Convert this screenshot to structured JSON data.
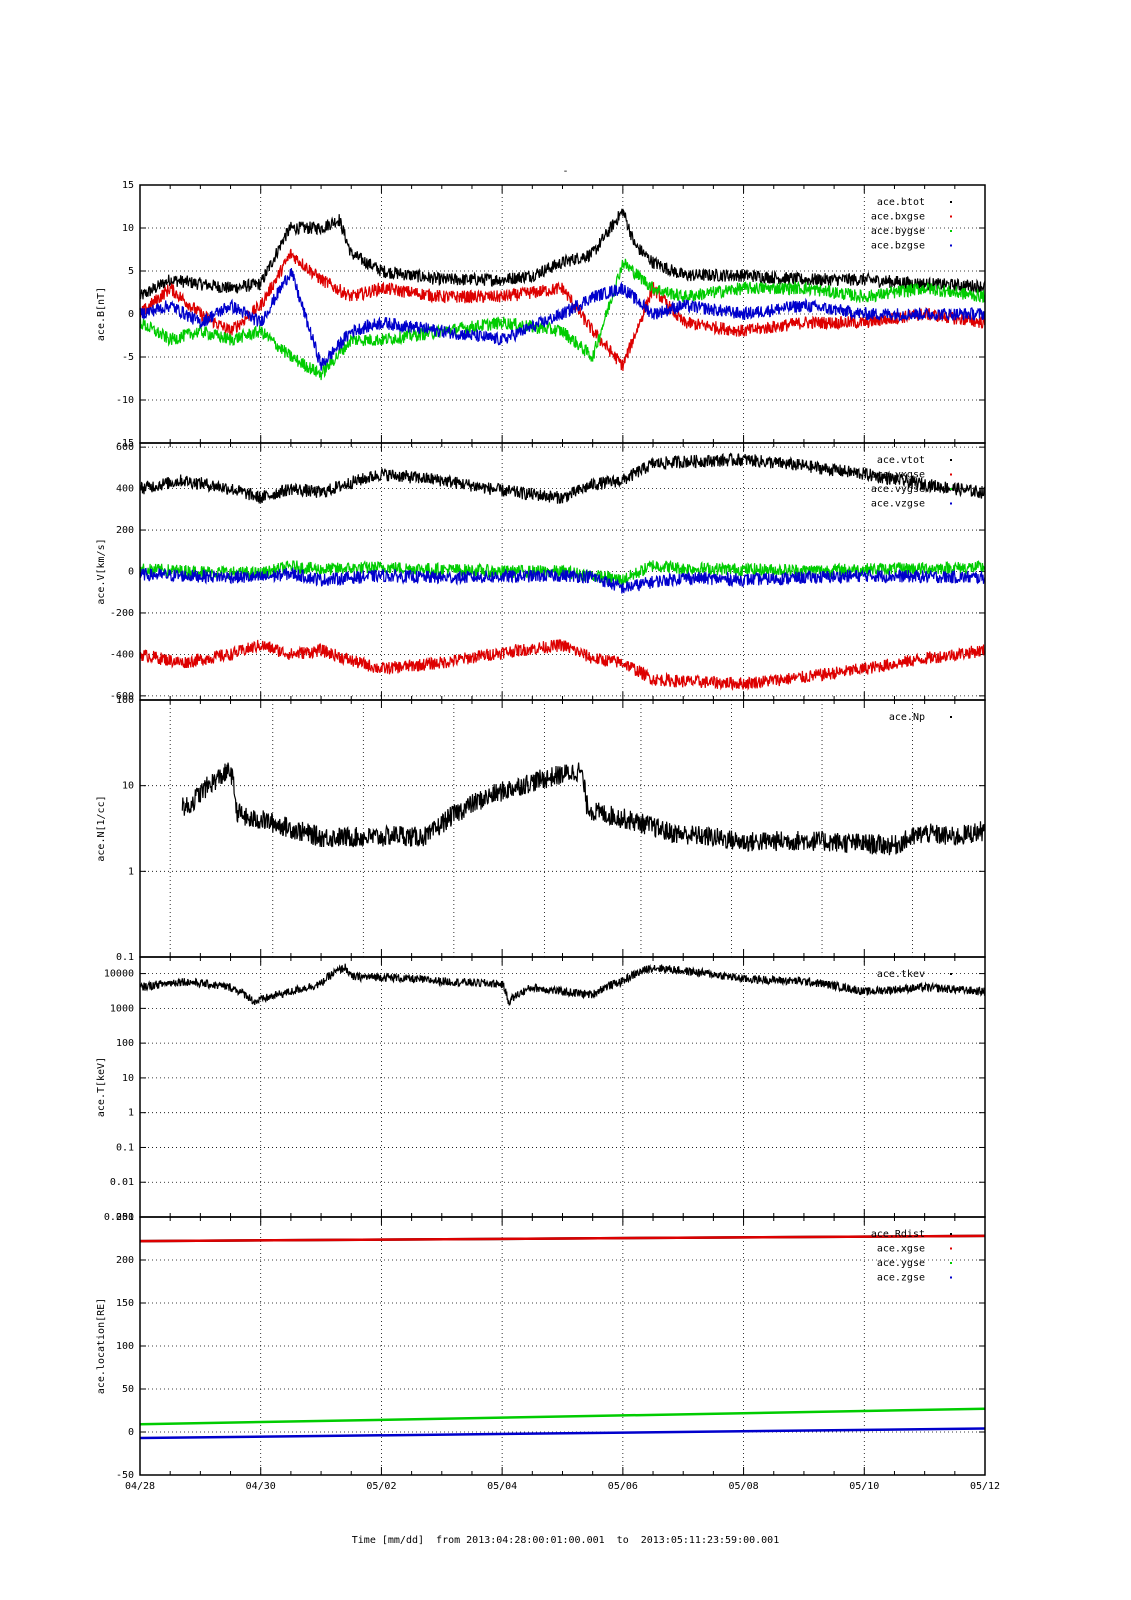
{
  "title": "-",
  "footer": "Time [mm/dd]  from 2013:04:28:00:01:00.001  to  2013:05:11:23:59:00.001",
  "x_ticks": [
    "04/28",
    "04/30",
    "05/02",
    "05/04",
    "05/06",
    "05/08",
    "05/10",
    "05/12"
  ],
  "colors": {
    "black": "#000000",
    "red": "#dd0000",
    "green": "#00cc00",
    "blue": "#0000cc"
  },
  "chart_data": [
    {
      "type": "scatter",
      "ylabel": "ace.B[nT]",
      "ylim": [
        -15,
        15
      ],
      "yticks": [
        15,
        10,
        5,
        0,
        -5,
        -10,
        -15
      ],
      "grid": true,
      "legend": "top-right",
      "series": [
        {
          "name": "ace.btot",
          "color": "black",
          "x": [
            0,
            0.5,
            1,
            1.5,
            2,
            2.4,
            2.5,
            3,
            3.3,
            3.5,
            4,
            4.5,
            5,
            5.5,
            6,
            6.5,
            7,
            7.5,
            8,
            8.2,
            8.5,
            9,
            10,
            11,
            12,
            13,
            14
          ],
          "y": [
            2,
            4,
            3.5,
            3,
            3.5,
            9,
            10,
            10,
            11,
            7,
            5,
            4.5,
            4,
            4,
            4,
            4.5,
            6,
            7,
            12,
            8,
            6,
            4.5,
            4.5,
            4,
            4,
            3.5,
            3.2
          ]
        },
        {
          "name": "ace.bxgse",
          "color": "red",
          "x": [
            0,
            0.5,
            1,
            1.5,
            2,
            2.5,
            3,
            3.5,
            4,
            5,
            6,
            7,
            7.5,
            8,
            8.5,
            9,
            10,
            11,
            12,
            13,
            14
          ],
          "y": [
            0,
            3,
            0,
            -2,
            1,
            7,
            4,
            2,
            3,
            2,
            2,
            3,
            -2,
            -6,
            3,
            -1,
            -2,
            -1,
            -1,
            0,
            -1
          ]
        },
        {
          "name": "ace.bygse",
          "color": "green",
          "x": [
            0,
            0.5,
            1,
            1.5,
            2,
            2.5,
            3,
            3.5,
            4,
            5,
            6,
            7,
            7.5,
            8,
            8.5,
            9,
            10,
            11,
            12,
            13,
            14
          ],
          "y": [
            -1,
            -3,
            -2,
            -3,
            -2,
            -5,
            -7,
            -3,
            -3,
            -2,
            -1,
            -2,
            -5,
            6,
            3,
            2,
            3,
            3,
            2,
            3,
            2
          ]
        },
        {
          "name": "ace.bzgse",
          "color": "blue",
          "x": [
            0,
            0.5,
            1,
            1.5,
            2,
            2.5,
            3,
            3.5,
            4,
            5,
            6,
            7,
            7.5,
            8,
            8.5,
            9,
            10,
            11,
            12,
            13,
            14
          ],
          "y": [
            0,
            1,
            -1,
            1,
            -1,
            5,
            -6,
            -2,
            -1,
            -2,
            -3,
            0,
            2,
            3,
            0,
            1,
            0,
            1,
            0,
            0,
            0
          ]
        }
      ]
    },
    {
      "type": "scatter",
      "ylabel": "ace.V[km/s]",
      "ylim": [
        -620,
        620
      ],
      "yticks": [
        600,
        400,
        200,
        0,
        -200,
        -400,
        -600
      ],
      "grid": true,
      "legend": "top-right",
      "series": [
        {
          "name": "ace.vtot",
          "color": "black",
          "x": [
            0,
            0.7,
            1.5,
            2,
            2.5,
            3,
            3.5,
            4,
            5,
            6,
            7,
            7.5,
            8,
            8.5,
            9,
            10,
            11,
            12,
            13,
            14
          ],
          "y": [
            400,
            440,
            400,
            355,
            400,
            380,
            430,
            470,
            440,
            390,
            355,
            420,
            440,
            520,
            530,
            540,
            510,
            470,
            420,
            380
          ]
        },
        {
          "name": "ace.vxgse",
          "color": "red",
          "x": [
            0,
            0.7,
            1.5,
            2,
            2.5,
            3,
            3.5,
            4,
            5,
            6,
            7,
            7.5,
            8,
            8.5,
            9,
            10,
            11,
            12,
            13,
            14
          ],
          "y": [
            -400,
            -440,
            -400,
            -355,
            -400,
            -380,
            -430,
            -470,
            -440,
            -390,
            -355,
            -420,
            -440,
            -520,
            -530,
            -540,
            -510,
            -470,
            -420,
            -380
          ]
        },
        {
          "name": "ace.vygse",
          "color": "green",
          "x": [
            0,
            2,
            2.5,
            3,
            4,
            5,
            6,
            7,
            7.5,
            8,
            8.5,
            9,
            10,
            11,
            12,
            13,
            14
          ],
          "y": [
            10,
            -10,
            25,
            10,
            20,
            10,
            0,
            0,
            -20,
            -40,
            30,
            15,
            10,
            5,
            10,
            15,
            20
          ]
        },
        {
          "name": "ace.vzgse",
          "color": "blue",
          "x": [
            0,
            2,
            2.5,
            3,
            4,
            5,
            6,
            7,
            7.5,
            8,
            8.5,
            9,
            10,
            11,
            12,
            13,
            14
          ],
          "y": [
            -15,
            -30,
            -10,
            -40,
            -20,
            -30,
            -25,
            -20,
            -25,
            -80,
            -50,
            -30,
            -40,
            -30,
            -20,
            -25,
            -30
          ]
        }
      ]
    },
    {
      "type": "scatter",
      "ylabel": "ace.N[1/cc]",
      "yscale": "log",
      "ylim": [
        0.1,
        100
      ],
      "yticks": [
        100,
        10,
        1,
        0.1
      ],
      "grid": true,
      "legend": "top-right",
      "series": [
        {
          "name": "ace.Np",
          "color": "black",
          "x": [
            0.7,
            0.8,
            1.5,
            1.6,
            1.8,
            2,
            2.3,
            2.6,
            3,
            3.5,
            4,
            4.3,
            4.5,
            4.8,
            7.3,
            7.4,
            7.5,
            8.8,
            9.5,
            10,
            11,
            12,
            12.5,
            13,
            13.5,
            14
          ],
          "y": [
            6,
            5.5,
            15,
            5,
            4,
            4,
            3.5,
            3,
            2.5,
            2.5,
            2.5,
            2.7,
            2.5,
            2.6,
            15,
            6,
            5,
            2.8,
            2.5,
            2.2,
            2.3,
            2.1,
            2,
            2.8,
            2.5,
            3
          ]
        }
      ]
    },
    {
      "type": "scatter",
      "ylabel": "ace.T[keV]",
      "yscale": "log",
      "ylim": [
        0.001,
        30000
      ],
      "yticks": [
        10000,
        1000,
        100,
        10,
        1,
        0.1,
        0.01,
        0.001
      ],
      "grid": true,
      "legend": "top-right",
      "series": [
        {
          "name": "ace.tkev",
          "color": "black",
          "x": [
            0,
            0.7,
            1.5,
            1.9,
            2.5,
            3,
            3.4,
            3.5,
            4,
            5,
            6,
            6.1,
            6.5,
            7,
            7.5,
            7.7,
            8,
            8.5,
            9,
            10,
            11,
            12,
            13,
            14
          ],
          "y": [
            4000,
            6000,
            4000,
            1500,
            3000,
            5000,
            15000,
            8000,
            8000,
            6000,
            5000,
            1500,
            4000,
            3000,
            2500,
            4000,
            6000,
            15000,
            12000,
            7000,
            6000,
            3000,
            4000,
            3000
          ]
        }
      ]
    },
    {
      "type": "line",
      "ylabel": "ace.location[RE]",
      "ylim": [
        -50,
        250
      ],
      "yticks": [
        250,
        200,
        150,
        100,
        50,
        0,
        -50
      ],
      "grid": true,
      "legend": "top-right",
      "series": [
        {
          "name": "ace.Rdist",
          "color": "black",
          "x": [
            0,
            14
          ],
          "y": [
            222,
            228
          ]
        },
        {
          "name": "ace.xgse",
          "color": "red",
          "x": [
            0,
            14
          ],
          "y": [
            222,
            228
          ]
        },
        {
          "name": "ace.ygse",
          "color": "green",
          "x": [
            0,
            14
          ],
          "y": [
            9,
            27
          ]
        },
        {
          "name": "ace.zgse",
          "color": "blue",
          "x": [
            0,
            14
          ],
          "y": [
            -7,
            4
          ]
        }
      ]
    }
  ]
}
